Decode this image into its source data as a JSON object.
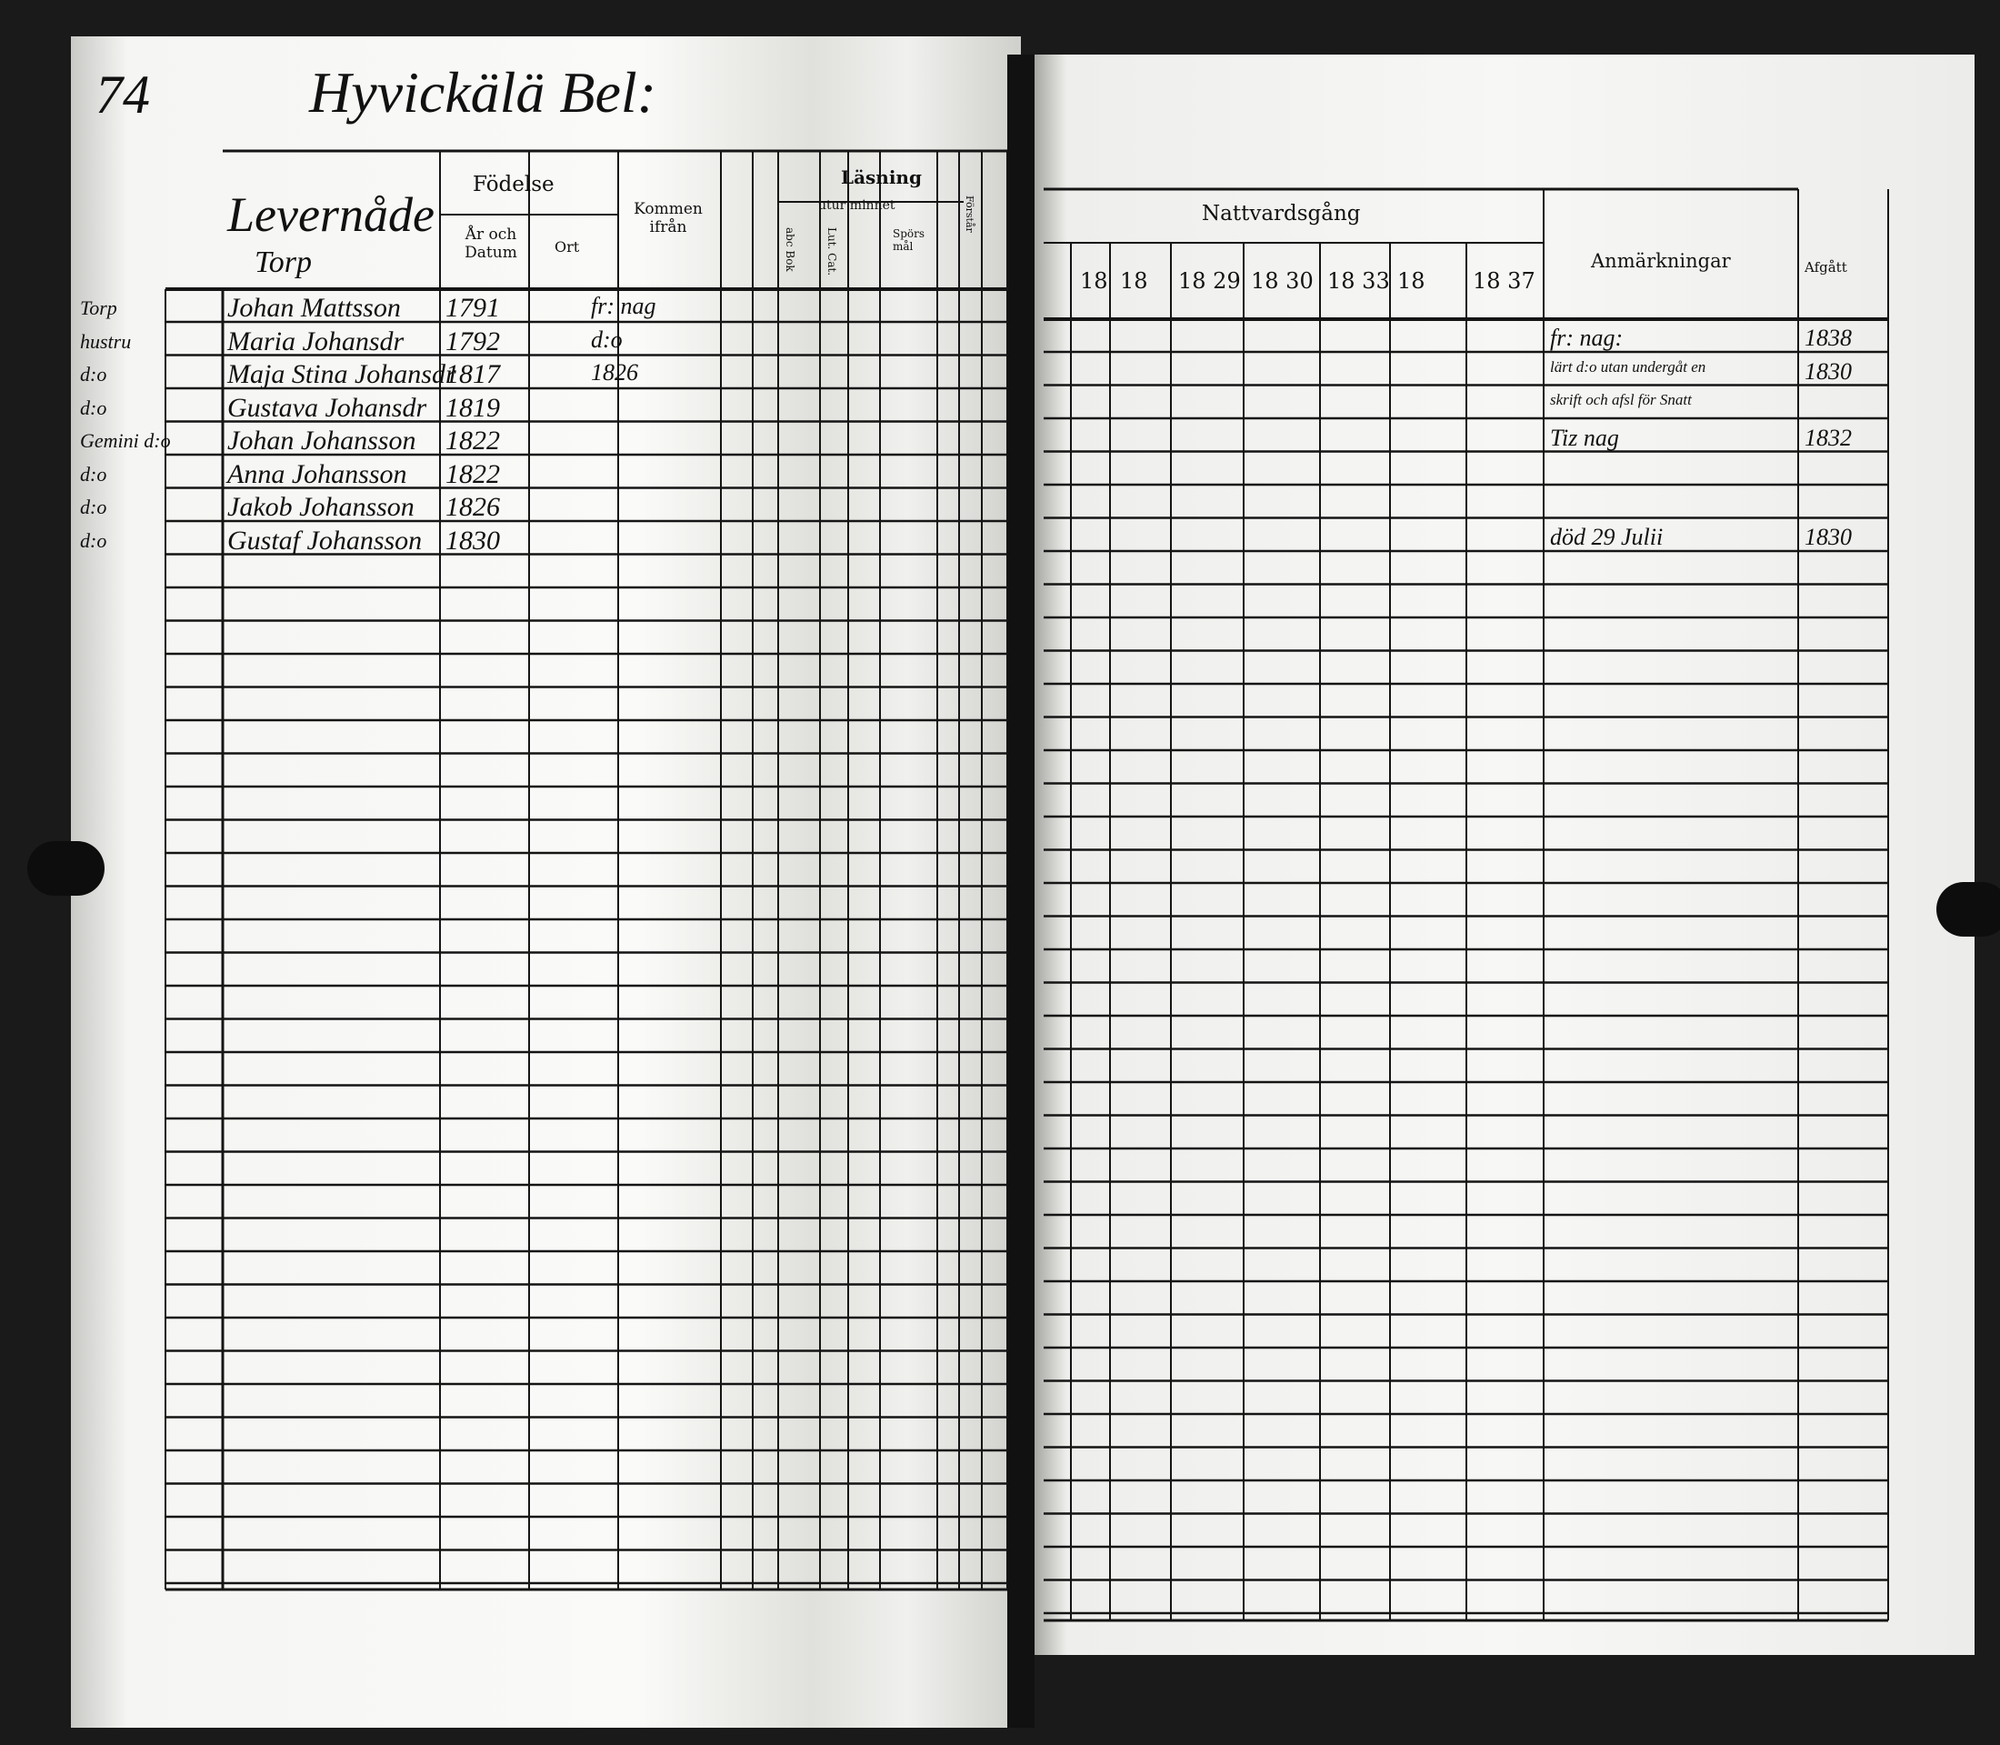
{
  "page_number": "74",
  "farm_name": "Hyvickälä Bel:",
  "left_headers": {
    "occupation": "Levernåde",
    "croft": "Torp",
    "birth": "Födelse",
    "birth_year_date": "År och Datum",
    "birth_place": "Ort",
    "arrived_from": "Kommen ifrån",
    "reading": "Läsning",
    "by_heart": "utur minnet",
    "abc_book": "abc Bok",
    "catechism": "Lut. Cat.",
    "questions": "Spörs mål",
    "understanding": "Förstår"
  },
  "right_headers": {
    "communion": "Nattvardsgång",
    "years": [
      "18",
      "18",
      "18 29",
      "18 30",
      "18 33",
      "18",
      "18 37"
    ],
    "remarks": "Anmärkningar",
    "departed": "Afgått"
  },
  "margin_notes": [
    "Torp",
    "hustru",
    "d:o",
    "d:o",
    "Gemini d:o",
    "d:o",
    "d:o",
    "d:o"
  ],
  "entries": [
    {
      "name": "Johan Mattsson",
      "born": "1791",
      "from": "fr: nag",
      "remark": "fr: nag:",
      "departed": "1838"
    },
    {
      "name": "Maria Johansdr",
      "born": "1792",
      "from": "d:o",
      "remark": "lärt d:o utan undergåt en",
      "departed": "1830"
    },
    {
      "name": "Maja Stina Johansdr",
      "born": "1817",
      "from": "1826",
      "remark": "skrift och afsl för Snatt",
      "departed": ""
    },
    {
      "name": "Gustava Johansdr",
      "born": "1819",
      "from": "",
      "remark": "Tiz nag",
      "departed": "1832"
    },
    {
      "name": "Johan Johansson",
      "born": "1822",
      "from": "",
      "remark": "",
      "departed": ""
    },
    {
      "name": "Anna Johansson",
      "born": "1822",
      "from": "",
      "remark": "",
      "departed": ""
    },
    {
      "name": "Jakob Johansson",
      "born": "1826",
      "from": "",
      "remark": "död 29 Julii",
      "departed": "1830"
    },
    {
      "name": "Gustaf Johansson",
      "born": "1830",
      "from": "",
      "remark": "",
      "departed": ""
    }
  ]
}
